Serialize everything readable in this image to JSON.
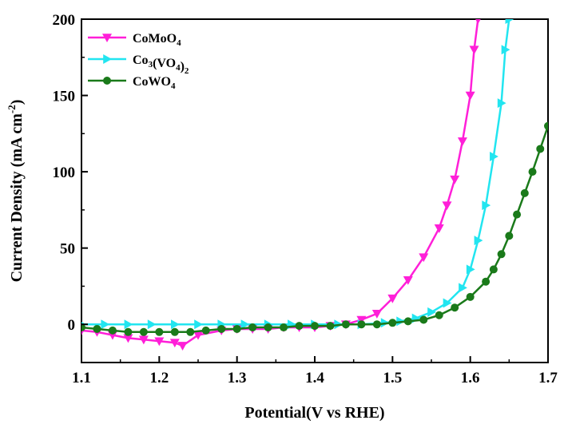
{
  "chart_data": {
    "type": "line",
    "xlabel": "Potential(V vs RHE)",
    "ylabel": "Current Density (mA cm",
    "ylabel_unit_sup": "-2",
    "ylabel_close": ")",
    "xlim": [
      1.1,
      1.7
    ],
    "ylim": [
      -25,
      200
    ],
    "xticks": [
      1.1,
      1.2,
      1.3,
      1.4,
      1.5,
      1.6,
      1.7
    ],
    "xtick_labels": [
      "1.1",
      "1.2",
      "1.3",
      "1.4",
      "1.5",
      "1.6",
      "1.7"
    ],
    "yticks": [
      0,
      50,
      100,
      150,
      200
    ],
    "ytick_labels": [
      "0",
      "50",
      "100",
      "150",
      "200"
    ],
    "grid": false,
    "legend_position": "top-left",
    "series": [
      {
        "name": "CoMoO4",
        "legend": {
          "base": "CoMoO",
          "sub": "4",
          "mid": "",
          "sub2": ""
        },
        "color": "#ff1fd8",
        "marker": "triangle-down",
        "x": [
          1.1,
          1.12,
          1.14,
          1.16,
          1.18,
          1.2,
          1.22,
          1.23,
          1.25,
          1.28,
          1.3,
          1.32,
          1.34,
          1.36,
          1.38,
          1.4,
          1.42,
          1.44,
          1.46,
          1.48,
          1.5,
          1.52,
          1.54,
          1.56,
          1.57,
          1.58,
          1.59,
          1.6,
          1.605,
          1.61
        ],
        "y": [
          -4,
          -5,
          -7,
          -9,
          -10,
          -11,
          -12,
          -14,
          -7,
          -4,
          -3,
          -3,
          -3,
          -2,
          -2,
          -2,
          -1,
          0,
          3,
          7,
          17,
          29,
          44,
          63,
          78,
          95,
          120,
          150,
          180,
          200
        ]
      },
      {
        "name": "Co3(VO4)2",
        "legend": {
          "base": "Co",
          "sub": "3",
          "mid": "(VO",
          "sub2": "4",
          "tail": ")",
          "sub3": "2"
        },
        "color": "#22e5f0",
        "marker": "triangle-right",
        "x": [
          1.1,
          1.13,
          1.16,
          1.19,
          1.22,
          1.25,
          1.28,
          1.31,
          1.34,
          1.37,
          1.4,
          1.43,
          1.46,
          1.49,
          1.51,
          1.53,
          1.55,
          1.57,
          1.59,
          1.6,
          1.61,
          1.62,
          1.63,
          1.64,
          1.645,
          1.65
        ],
        "y": [
          0,
          0,
          0,
          0,
          0,
          0,
          0,
          0,
          0,
          0,
          0,
          0,
          0,
          1,
          2,
          4,
          8,
          14,
          24,
          36,
          55,
          78,
          110,
          145,
          180,
          200
        ]
      },
      {
        "name": "CoWO4",
        "legend": {
          "base": "CoWO",
          "sub": "4",
          "mid": "",
          "sub2": ""
        },
        "color": "#1a7a1a",
        "marker": "circle",
        "x": [
          1.1,
          1.12,
          1.14,
          1.16,
          1.18,
          1.2,
          1.22,
          1.24,
          1.26,
          1.28,
          1.3,
          1.32,
          1.34,
          1.36,
          1.38,
          1.4,
          1.42,
          1.44,
          1.46,
          1.48,
          1.5,
          1.52,
          1.54,
          1.56,
          1.58,
          1.6,
          1.62,
          1.63,
          1.64,
          1.65,
          1.66,
          1.67,
          1.68,
          1.69,
          1.7
        ],
        "y": [
          -2,
          -3,
          -4,
          -5,
          -5,
          -5,
          -5,
          -5,
          -4,
          -3,
          -3,
          -2,
          -2,
          -2,
          -1,
          -1,
          -1,
          0,
          0,
          0,
          1,
          2,
          3,
          6,
          11,
          18,
          28,
          36,
          46,
          58,
          72,
          86,
          100,
          115,
          130
        ]
      }
    ]
  }
}
